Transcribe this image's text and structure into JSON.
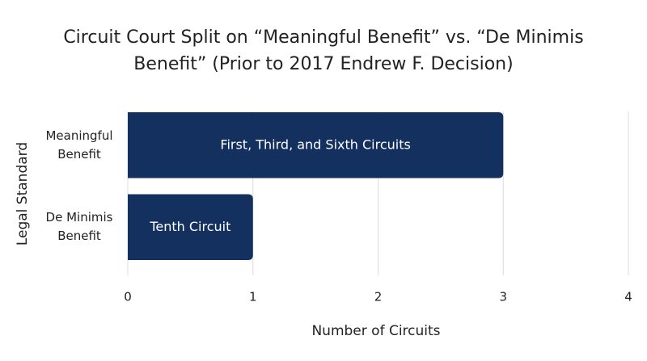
{
  "chart_data": {
    "type": "bar",
    "orientation": "horizontal",
    "title": "Circuit Court Split on “Meaningful Benefit” vs. “De Minimis Benefit” (Prior to 2017 Endrew F. Decision)",
    "categories": [
      "Meaningful Benefit",
      "De Minimis Benefit"
    ],
    "values": [
      3,
      1
    ],
    "bar_labels": [
      "First, Third, and Sixth Circuits",
      "Tenth Circuit"
    ],
    "color": "#14305f",
    "xlim": [
      0,
      4
    ],
    "xticks": [
      0,
      1,
      2,
      3,
      4
    ],
    "grid": true,
    "xlabel": "Number of Circuits",
    "ylabel": "Legal Standard"
  }
}
